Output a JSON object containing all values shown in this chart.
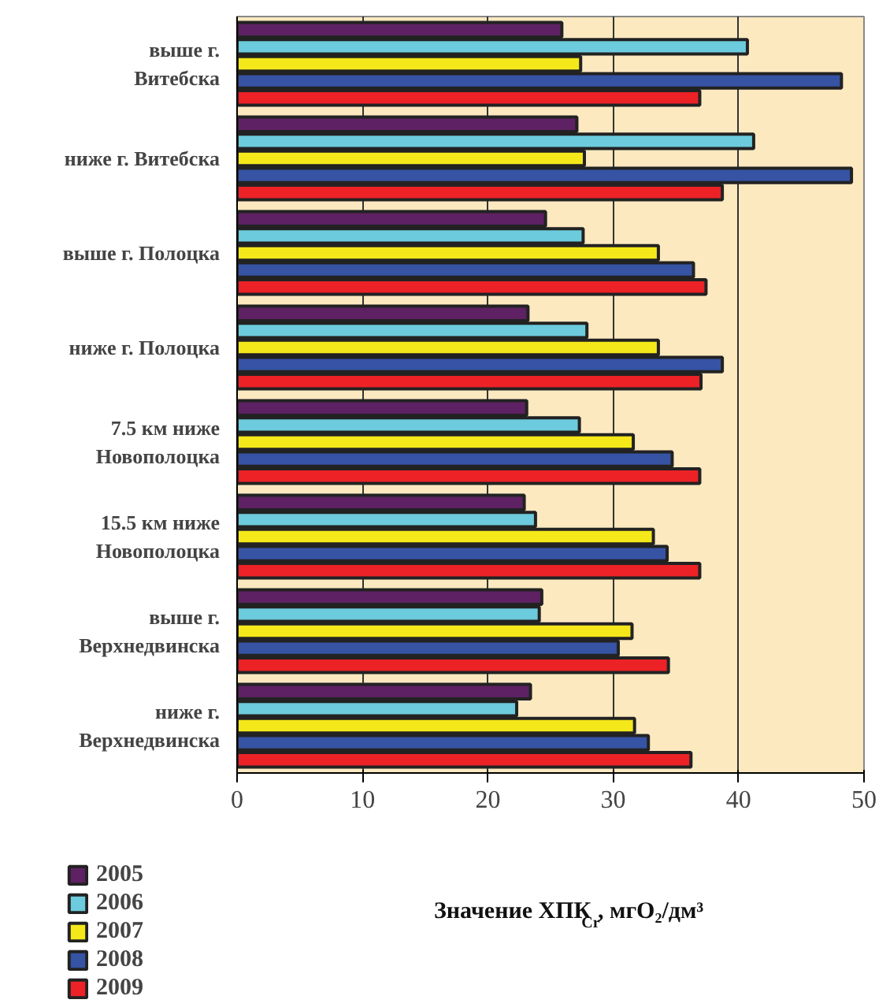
{
  "chart_data": {
    "type": "bar",
    "orientation": "horizontal",
    "categories": [
      "выше г.\nВитебска",
      "ниже г. Витебска",
      "выше г. Полоцка",
      "ниже г. Полоцка",
      "7.5 км ниже\nНовополоцка",
      "15.5 км ниже\nНовополоцка",
      "выше г.\nВерхнедвинска",
      "ниже г.\nВерхнедвинска"
    ],
    "series": [
      {
        "name": "2005",
        "color": "#5e2163",
        "values": [
          25.9,
          27.1,
          24.6,
          23.2,
          23.1,
          22.9,
          24.3,
          23.4
        ]
      },
      {
        "name": "2006",
        "color": "#6ccbdc",
        "values": [
          40.7,
          41.2,
          27.6,
          27.9,
          27.3,
          23.8,
          24.1,
          22.3
        ]
      },
      {
        "name": "2007",
        "color": "#f5e81a",
        "values": [
          27.4,
          27.7,
          33.6,
          33.6,
          31.6,
          33.2,
          31.5,
          31.7
        ]
      },
      {
        "name": "2008",
        "color": "#3653a4",
        "values": [
          48.2,
          49.0,
          36.4,
          38.7,
          34.7,
          34.3,
          30.4,
          32.8
        ]
      },
      {
        "name": "2009",
        "color": "#ec2227",
        "values": [
          36.9,
          38.7,
          37.4,
          37.0,
          36.9,
          36.9,
          34.4,
          36.2
        ]
      }
    ],
    "xlabel": "Значение ХПК$_{Cr}$, мгO₂/дм³",
    "xlim": [
      0,
      50
    ],
    "xticks": [
      0,
      10,
      20,
      30,
      40,
      50
    ],
    "grid": "x",
    "legend": "bottom left"
  }
}
